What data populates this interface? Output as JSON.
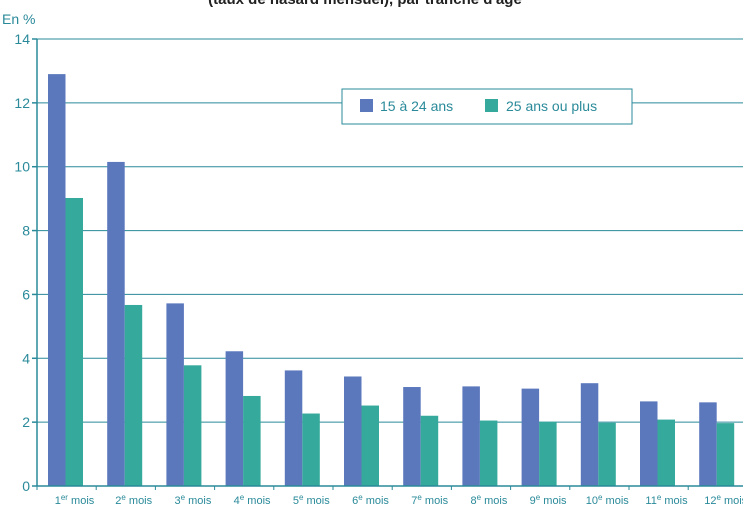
{
  "chart_data": {
    "type": "bar",
    "title": "(taux de hasard mensuel), par tranche d'âge",
    "ylabel": "En %",
    "xlabel": "",
    "ylim": [
      0,
      14
    ],
    "yticks": [
      0,
      2,
      4,
      6,
      8,
      10,
      12,
      14
    ],
    "grid": true,
    "legend_position": "top-right",
    "categories": [
      {
        "num": "1",
        "sup": "er",
        "word": " mois"
      },
      {
        "num": "2",
        "sup": "e",
        "word": " mois"
      },
      {
        "num": "3",
        "sup": "e",
        "word": " mois"
      },
      {
        "num": "4",
        "sup": "e",
        "word": " mois"
      },
      {
        "num": "5",
        "sup": "e",
        "word": " mois"
      },
      {
        "num": "6",
        "sup": "e",
        "word": " mois"
      },
      {
        "num": "7",
        "sup": "e",
        "word": " mois"
      },
      {
        "num": "8",
        "sup": "e",
        "word": " mois"
      },
      {
        "num": "9",
        "sup": "e",
        "word": " mois"
      },
      {
        "num": "10",
        "sup": "e",
        "word": " mois"
      },
      {
        "num": "11",
        "sup": "e",
        "word": " mois"
      },
      {
        "num": "12",
        "sup": "e",
        "word": " mois"
      }
    ],
    "series": [
      {
        "name": "15 à 24 ans",
        "color": "#5b78bd",
        "values": [
          12.9,
          10.15,
          5.72,
          4.22,
          3.62,
          3.43,
          3.1,
          3.12,
          3.05,
          3.22,
          2.65,
          2.62
        ]
      },
      {
        "name": "25 ans ou plus",
        "color": "#35a99b",
        "values": [
          9.02,
          5.67,
          3.78,
          2.82,
          2.27,
          2.52,
          2.2,
          2.05,
          2.01,
          1.98,
          2.08,
          1.97
        ]
      }
    ],
    "colors": {
      "axis": "#2a8a9a",
      "grid": "#2a8a9a"
    }
  }
}
